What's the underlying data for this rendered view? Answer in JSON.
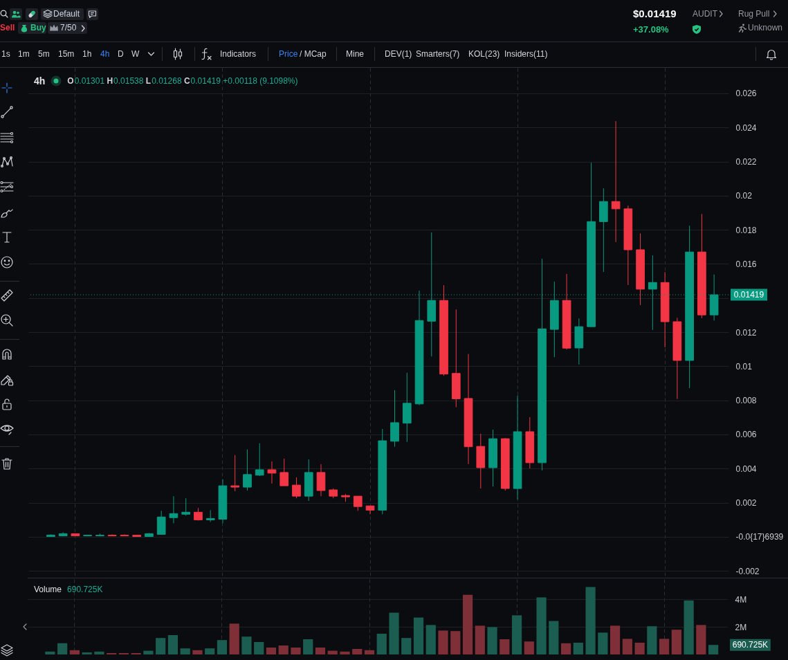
{
  "chart_data": [
    {
      "type": "other",
      "annotations": [
        "Default",
        "Sell",
        "Buy",
        "7/50",
        "$0.01419",
        "+37.08%",
        "AUDIT",
        "Rug Pull",
        "Unknown",
        "1s",
        "1m",
        "5m",
        "15m",
        "1h",
        "4h",
        "D",
        "W",
        "Indicators",
        "Price",
        "/ MCap",
        "Mine",
        "DEV(1)",
        "Smarters(7)",
        "KOL(23)",
        "Insiders(11)"
      ]
    },
    {
      "type": "candlestick",
      "title": "4h",
      "annotations": [
        "O0.01301 H0.01538 L0.01268 C0.01419 +0.00118 (9.1098%)"
      ],
      "categories": [
        null,
        null,
        null,
        null,
        null,
        null,
        null,
        null,
        null,
        null,
        null,
        null,
        null,
        null,
        null,
        null,
        null,
        null,
        null,
        null,
        null,
        null,
        null,
        null,
        null,
        null,
        null,
        null,
        null,
        null,
        null,
        null,
        null,
        null,
        null,
        null,
        null,
        null,
        null,
        null,
        null,
        null,
        null,
        null,
        null,
        null,
        null,
        null,
        null,
        null,
        null,
        null,
        null,
        null,
        null
      ],
      "ohlc": [
        [
          1e-05,
          0.00014,
          1e-05,
          0.0001
        ],
        [
          5e-05,
          0.00026,
          5e-05,
          0.00018
        ],
        [
          0.00018,
          0.00018,
          5e-05,
          5e-05
        ],
        [
          5e-05,
          9e-05,
          5e-05,
          9e-05
        ],
        [
          5e-05,
          0.00018,
          5e-05,
          9e-05
        ],
        [
          9e-05,
          0.00014,
          5e-05,
          5e-05
        ],
        [
          9e-05,
          0.00014,
          5e-05,
          5e-05
        ],
        [
          9e-05,
          9e-05,
          1e-05,
          1e-05
        ],
        [
          1e-05,
          0.00022,
          1e-05,
          0.00018
        ],
        [
          0.00014,
          0.00152,
          0.00014,
          0.00116
        ],
        [
          0.00112,
          0.00238,
          0.00079,
          0.00136
        ],
        [
          0.00132,
          0.00226,
          0.00124,
          0.00144
        ],
        [
          0.00144,
          0.00169,
          0.00095,
          0.00099
        ],
        [
          0.00099,
          0.00156,
          0.00087,
          0.00107
        ],
        [
          0.00103,
          0.00336,
          0.00079,
          0.00299
        ],
        [
          0.00299,
          0.00479,
          0.00267,
          0.00291
        ],
        [
          0.00291,
          0.00512,
          0.00271,
          0.00365
        ],
        [
          0.00361,
          0.00548,
          0.00356,
          0.00393
        ],
        [
          0.00393,
          0.00442,
          0.00312,
          0.00373
        ],
        [
          0.00377,
          0.00458,
          0.00299,
          0.00299
        ],
        [
          0.00303,
          0.00348,
          0.00226,
          0.00238
        ],
        [
          0.00238,
          0.00454,
          0.0021,
          0.00377
        ],
        [
          0.00377,
          0.00426,
          0.00238,
          0.00271
        ],
        [
          0.00275,
          0.00283,
          0.00226,
          0.00238
        ],
        [
          0.00242,
          0.0025,
          0.00205,
          0.00234
        ],
        [
          0.00238,
          0.00238,
          0.00152,
          0.00177
        ],
        [
          0.00181,
          0.00181,
          0.00132,
          0.00156
        ],
        [
          0.00156,
          0.00632,
          0.00132,
          0.00563
        ],
        [
          0.0056,
          0.0086,
          0.00528,
          0.00669
        ],
        [
          0.00666,
          0.00962,
          0.00556,
          0.00783
        ],
        [
          0.00779,
          0.01443,
          0.00772,
          0.01268
        ],
        [
          0.01264,
          0.01785,
          0.01057,
          0.01386
        ],
        [
          0.01386,
          0.01475,
          0.00944,
          0.00954
        ],
        [
          0.00958,
          0.01333,
          0.0076,
          0.00809
        ],
        [
          0.00811,
          0.01072,
          0.00426,
          0.00528
        ],
        [
          0.0053,
          0.00604,
          0.00283,
          0.00405
        ],
        [
          0.00405,
          0.00628,
          0.00295,
          0.00575
        ],
        [
          0.00575,
          0.00579,
          0.00271,
          0.00283
        ],
        [
          0.00283,
          0.00828,
          0.00218,
          0.00616
        ],
        [
          0.00616,
          0.00701,
          0.00401,
          0.00434
        ],
        [
          0.00434,
          0.0163,
          0.00389,
          0.01219
        ],
        [
          0.01216,
          0.01496,
          0.01053,
          0.01386
        ],
        [
          0.01386,
          0.01541,
          0.01098,
          0.01106
        ],
        [
          0.01107,
          0.0128,
          0.0101,
          0.01232
        ],
        [
          0.01232,
          0.02193,
          0.01232,
          0.01848
        ],
        [
          0.01848,
          0.02043,
          0.01553,
          0.01966
        ],
        [
          0.01966,
          0.02437,
          0.01728,
          0.01923
        ],
        [
          0.01923,
          0.01942,
          0.01476,
          0.01683
        ],
        [
          0.01683,
          0.01779,
          0.01359,
          0.01452
        ],
        [
          0.01452,
          0.0165,
          0.01213,
          0.01491
        ],
        [
          0.01491,
          0.01552,
          0.01111,
          0.01261
        ],
        [
          0.01261,
          0.01284,
          0.00808,
          0.01034
        ],
        [
          0.01034,
          0.01824,
          0.00872,
          0.0167
        ],
        [
          0.0167,
          0.01893,
          0.01282,
          0.01301
        ],
        [
          0.01301,
          0.01538,
          0.01268,
          0.01419
        ]
      ],
      "colors": [
        "#089981",
        "#089981",
        "#f23645",
        "#089981",
        "#089981",
        "#f23645",
        "#f23645",
        "#f23645",
        "#089981",
        "#089981",
        "#089981",
        "#089981",
        "#f23645",
        "#089981",
        "#089981",
        "#f23645",
        "#089981",
        "#089981",
        "#f23645",
        "#f23645",
        "#f23645",
        "#089981",
        "#f23645",
        "#f23645",
        "#f23645",
        "#f23645",
        "#f23645",
        "#089981",
        "#089981",
        "#089981",
        "#089981",
        "#089981",
        "#f23645",
        "#f23645",
        "#f23645",
        "#f23645",
        "#089981",
        "#f23645",
        "#089981",
        "#f23645",
        "#089981",
        "#089981",
        "#f23645",
        "#089981",
        "#089981",
        "#089981",
        "#f23645",
        "#f23645",
        "#f23645",
        "#089981",
        "#f23645",
        "#f23645",
        "#089981",
        "#f23645",
        "#089981"
      ],
      "ylim": [
        -0.0024,
        0.0275
      ],
      "yticks": [
        -0.002,
        {
          "value": 0,
          "label": "-0.0{17}6939"
        },
        0.002,
        0.004,
        0.006,
        0.008,
        0.01,
        0.012,
        {
          "value": 0.014,
          "label": null
        },
        0.016,
        0.018,
        0.02,
        0.022,
        0.024,
        0.026
      ],
      "grid": true,
      "tick_labels": "y",
      "ref_lines": [
        {
          "axis": "y",
          "value": 0.01419,
          "label": "0.01419",
          "color": "#089981",
          "line_style": "dotted"
        }
      ]
    },
    {
      "type": "bar",
      "title": "Volume",
      "annotations": [
        "690.725K",
        "690.725K"
      ],
      "categories": [
        null,
        null,
        null,
        null,
        null,
        null,
        null,
        null,
        null,
        null,
        null,
        null,
        null,
        null,
        null,
        null,
        null,
        null,
        null,
        null,
        null,
        null,
        null,
        null,
        null,
        null,
        null,
        null,
        null,
        null,
        null,
        null,
        null,
        null,
        null,
        null,
        null,
        null,
        null,
        null,
        null,
        null,
        null,
        null,
        null,
        null,
        null,
        null,
        null,
        null,
        null,
        null,
        null,
        null,
        null
      ],
      "values": [
        210000,
        810000,
        310000,
        150000,
        210000,
        100000,
        100000,
        100000,
        270000,
        1190000,
        1400000,
        440000,
        310000,
        440000,
        1040000,
        2230000,
        1290000,
        900000,
        500000,
        650000,
        500000,
        1100000,
        500000,
        270000,
        210000,
        400000,
        310000,
        1500000,
        3020000,
        1190000,
        2670000,
        2130000,
        1730000,
        1690000,
        4310000,
        2080000,
        1980000,
        1100000,
        2830000,
        940000,
        4120000,
        2420000,
        810000,
        850000,
        4880000,
        1580000,
        2080000,
        1130000,
        850000,
        2040000,
        1130000,
        1790000,
        3900000,
        2130000,
        690725
      ],
      "colors": [
        "#1b5e51",
        "#1b5e51",
        "#7f2f37",
        "#1b5e51",
        "#1b5e51",
        "#7f2f37",
        "#7f2f37",
        "#7f2f37",
        "#1b5e51",
        "#1b5e51",
        "#1b5e51",
        "#1b5e51",
        "#7f2f37",
        "#1b5e51",
        "#1b5e51",
        "#7f2f37",
        "#1b5e51",
        "#1b5e51",
        "#7f2f37",
        "#7f2f37",
        "#7f2f37",
        "#1b5e51",
        "#7f2f37",
        "#7f2f37",
        "#7f2f37",
        "#7f2f37",
        "#7f2f37",
        "#1b5e51",
        "#1b5e51",
        "#1b5e51",
        "#1b5e51",
        "#1b5e51",
        "#7f2f37",
        "#7f2f37",
        "#7f2f37",
        "#7f2f37",
        "#1b5e51",
        "#7f2f37",
        "#1b5e51",
        "#7f2f37",
        "#1b5e51",
        "#1b5e51",
        "#7f2f37",
        "#1b5e51",
        "#1b5e51",
        "#1b5e51",
        "#7f2f37",
        "#7f2f37",
        "#7f2f37",
        "#1b5e51",
        "#7f2f37",
        "#7f2f37",
        "#1b5e51",
        "#7f2f37",
        "#1b5e51"
      ],
      "ylim": [
        0,
        5450000
      ],
      "yticks": [
        {
          "value": 2000000,
          "label": "2M"
        },
        {
          "value": 4000000,
          "label": "4M"
        }
      ],
      "grid": true,
      "tick_labels": "y"
    }
  ]
}
